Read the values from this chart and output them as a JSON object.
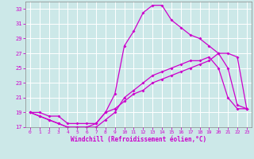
{
  "background_color": "#cce8e8",
  "grid_color": "#ffffff",
  "line_color": "#cc00cc",
  "xlim": [
    -0.5,
    23.5
  ],
  "ylim": [
    17,
    34
  ],
  "yticks": [
    17,
    19,
    21,
    23,
    25,
    27,
    29,
    31,
    33
  ],
  "xticks": [
    0,
    1,
    2,
    3,
    4,
    5,
    6,
    7,
    8,
    9,
    10,
    11,
    12,
    13,
    14,
    15,
    16,
    17,
    18,
    19,
    20,
    21,
    22,
    23
  ],
  "xlabel": "Windchill (Refroidissement éolien,°C)",
  "line1_x": [
    0,
    1,
    2,
    3,
    4,
    5,
    6,
    7,
    8,
    9,
    10,
    11,
    12,
    13,
    14,
    15,
    16,
    17,
    18,
    19,
    20,
    21,
    22,
    23
  ],
  "line1_y": [
    19,
    19,
    18.5,
    18.5,
    17.5,
    17.5,
    17.5,
    17.5,
    19,
    21.5,
    28,
    30,
    32.5,
    33.5,
    33.5,
    31.5,
    30.5,
    29.5,
    29,
    28,
    27,
    25,
    20,
    19.5
  ],
  "line2_x": [
    0,
    1,
    2,
    3,
    4,
    5,
    6,
    7,
    8,
    9,
    10,
    11,
    12,
    13,
    14,
    15,
    16,
    17,
    18,
    19,
    20,
    21,
    22,
    23
  ],
  "line2_y": [
    19,
    18.5,
    18,
    17.5,
    17,
    17,
    17,
    17,
    18,
    19,
    21,
    22,
    23,
    24,
    24.5,
    25,
    25.5,
    26,
    26,
    26.5,
    25,
    21,
    19.5,
    19.5
  ],
  "line3_x": [
    0,
    1,
    2,
    3,
    4,
    5,
    6,
    7,
    8,
    9,
    10,
    11,
    12,
    13,
    14,
    15,
    16,
    17,
    18,
    19,
    20,
    21,
    22,
    23
  ],
  "line3_y": [
    19,
    18.5,
    18,
    17.5,
    17,
    17,
    17,
    17.5,
    19,
    19.5,
    20.5,
    21.5,
    22,
    23,
    23.5,
    24,
    24.5,
    25,
    25.5,
    26,
    27,
    27,
    26.5,
    19.5
  ]
}
